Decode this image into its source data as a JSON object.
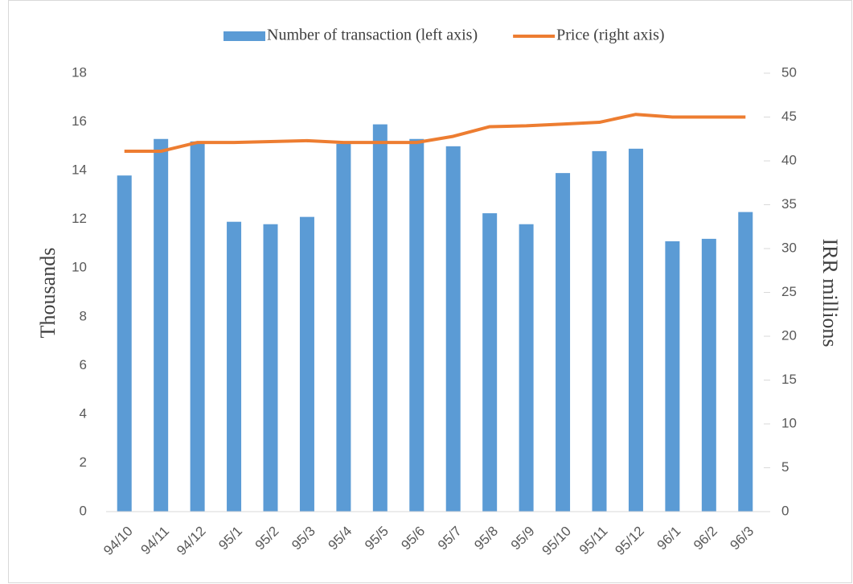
{
  "chart_data": {
    "type": "bar_line",
    "categories": [
      "94/10",
      "94/11",
      "94/12",
      "95/1",
      "95/2",
      "95/3",
      "95/4",
      "95/5",
      "95/6",
      "95/7",
      "95/8",
      "95/9",
      "95/10",
      "95/11",
      "95/12",
      "96/1",
      "96/2",
      "96/3"
    ],
    "series": [
      {
        "name": "Number of transaction (left axis)",
        "color": "#5b9bd5",
        "type": "bar",
        "values": [
          13.8,
          15.3,
          15.2,
          11.9,
          11.8,
          12.1,
          15.1,
          15.9,
          15.3,
          15.0,
          12.25,
          11.8,
          13.9,
          14.8,
          14.9,
          11.1,
          11.2,
          12.3
        ]
      },
      {
        "name": "Price (right axis)",
        "color": "#ed7d31",
        "type": "line",
        "axis": "y2",
        "values": [
          41.1,
          41.1,
          42.1,
          42.1,
          42.2,
          42.3,
          42.1,
          42.1,
          42.1,
          42.8,
          43.9,
          44.0,
          44.2,
          44.4,
          45.3,
          45.0,
          45.0,
          45.0
        ]
      }
    ],
    "ylabel": "Thousands",
    "y2label": "IRR millions",
    "ylim": [
      0,
      18
    ],
    "yticks": [
      0,
      2,
      4,
      6,
      8,
      10,
      12,
      14,
      16,
      18
    ],
    "y2lim": [
      0,
      50
    ],
    "y2ticks": [
      0,
      5,
      10,
      15,
      20,
      25,
      30,
      35,
      40,
      45,
      50
    ],
    "grid": false,
    "legend": "top"
  }
}
